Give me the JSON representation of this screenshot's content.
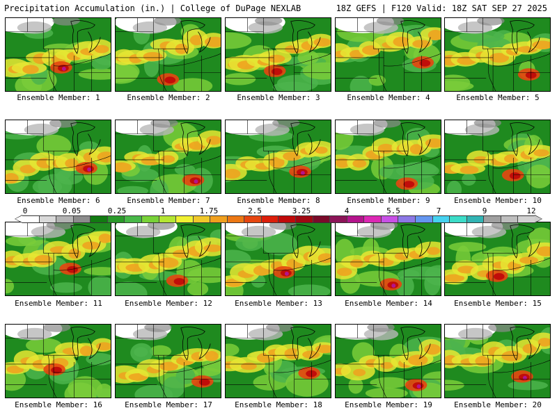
{
  "header": {
    "left_title": "Precipitation Accumulation (in.) | College of DuPage NEXLAB",
    "right_title": "18Z GEFS | F120 Valid: 18Z SAT SEP 27 2025"
  },
  "colorbar": {
    "tick_labels": [
      "0",
      "0.05",
      "0.25",
      "1",
      "1.75",
      "2.5",
      "3.25",
      "4",
      "5.5",
      "7",
      "9",
      "12"
    ],
    "colors": [
      "#ffffff",
      "#d9d9d9",
      "#b3b3b3",
      "#8c8c8c",
      "#127a12",
      "#2a9a2a",
      "#48b848",
      "#78d238",
      "#b4e632",
      "#f0f032",
      "#f0c82a",
      "#f0a01e",
      "#ec7814",
      "#e64610",
      "#dc1e0a",
      "#c00a0a",
      "#a00812",
      "#7a0a2a",
      "#8c1458",
      "#b4148c",
      "#dc28b4",
      "#c850e6",
      "#8c78e6",
      "#6496f0",
      "#46d2f0",
      "#3cdcc8",
      "#32b4b4",
      "#a0a0a0",
      "#bebebe",
      "#d2d2d2"
    ]
  },
  "panels": [
    {
      "label": "Ensemble Member: 1"
    },
    {
      "label": "Ensemble Member: 2"
    },
    {
      "label": "Ensemble Member: 3"
    },
    {
      "label": "Ensemble Member: 4"
    },
    {
      "label": "Ensemble Member: 5"
    },
    {
      "label": "Ensemble Member: 6"
    },
    {
      "label": "Ensemble Member: 7"
    },
    {
      "label": "Ensemble Member: 8"
    },
    {
      "label": "Ensemble Member: 9"
    },
    {
      "label": "Ensemble Member: 10"
    },
    {
      "label": "Ensemble Member: 11"
    },
    {
      "label": "Ensemble Member: 12"
    },
    {
      "label": "Ensemble Member: 13"
    },
    {
      "label": "Ensemble Member: 14"
    },
    {
      "label": "Ensemble Member: 15"
    },
    {
      "label": "Ensemble Member: 16"
    },
    {
      "label": "Ensemble Member: 17"
    },
    {
      "label": "Ensemble Member: 18"
    },
    {
      "label": "Ensemble Member: 19"
    },
    {
      "label": "Ensemble Member: 20"
    }
  ]
}
